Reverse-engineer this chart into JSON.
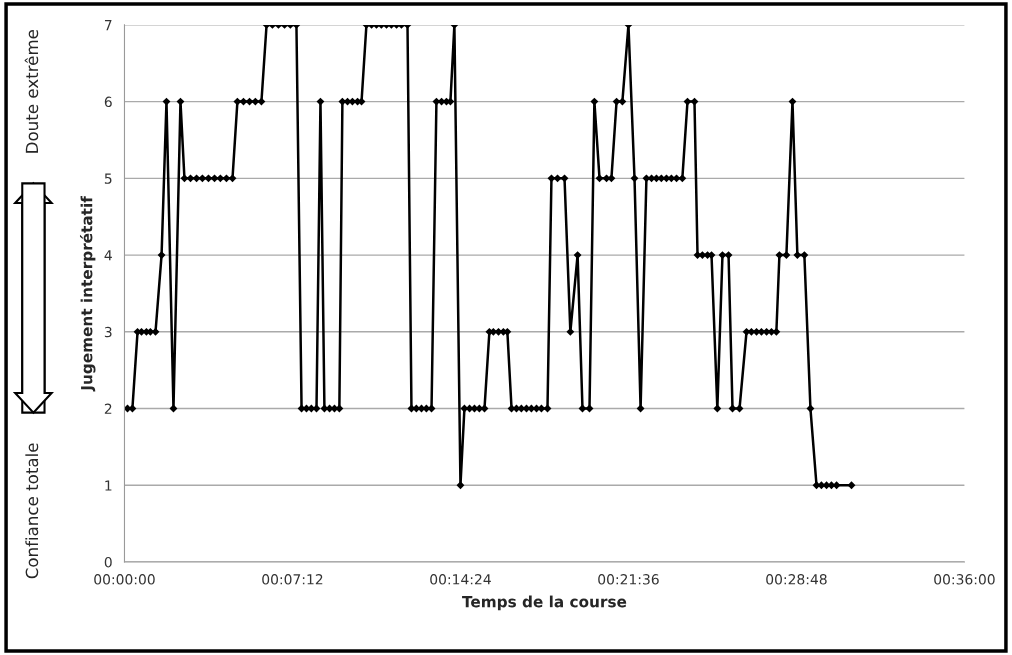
{
  "chart_data": {
    "type": "line",
    "xlabel": "Temps de la course",
    "ylabel": "Jugement interprétatif",
    "annotations": [
      "Doute extrême",
      "Confiance totale"
    ],
    "x": [
      0.13,
      0.34,
      0.56,
      0.73,
      0.94,
      1.11,
      1.33,
      1.59,
      1.8,
      2.1,
      2.4,
      2.57,
      2.83,
      3.09,
      3.34,
      3.6,
      3.86,
      4.11,
      4.37,
      4.63,
      4.84,
      5.1,
      5.36,
      5.61,
      5.87,
      6.09,
      6.34,
      6.6,
      6.86,
      7.11,
      7.37,
      7.59,
      7.8,
      8.01,
      8.23,
      8.4,
      8.57,
      8.79,
      9.0,
      9.21,
      9.34,
      9.56,
      9.77,
      9.99,
      10.16,
      10.37,
      10.59,
      10.8,
      11.01,
      11.23,
      11.44,
      11.66,
      11.87,
      12.13,
      12.3,
      12.51,
      12.73,
      12.94,
      13.16,
      13.37,
      13.59,
      13.8,
      13.97,
      14.14,
      14.4,
      14.57,
      14.79,
      15.0,
      15.21,
      15.43,
      15.64,
      15.81,
      16.03,
      16.24,
      16.41,
      16.59,
      16.8,
      17.01,
      17.23,
      17.44,
      17.66,
      17.87,
      18.13,
      18.3,
      18.56,
      18.86,
      19.11,
      19.42,
      19.63,
      19.93,
      20.14,
      20.36,
      20.66,
      20.87,
      21.09,
      21.34,
      21.6,
      21.86,
      22.12,
      22.37,
      22.59,
      22.8,
      23.01,
      23.23,
      23.44,
      23.66,
      23.91,
      24.13,
      24.43,
      24.56,
      24.77,
      24.99,
      25.16,
      25.41,
      25.63,
      25.89,
      26.06,
      26.36,
      26.66,
      26.87,
      27.09,
      27.3,
      27.52,
      27.73,
      27.94,
      28.07,
      28.37,
      28.63,
      28.84,
      29.14,
      29.4,
      29.66,
      29.87,
      30.09,
      30.3,
      30.52,
      31.16
    ],
    "series": [
      {
        "color": "#000000",
        "values": [
          2,
          2,
          3,
          3,
          3,
          3,
          3,
          4,
          6,
          2,
          6,
          5,
          5,
          5,
          5,
          5,
          5,
          5,
          5,
          5,
          6,
          6,
          6,
          6,
          6,
          7,
          7,
          7,
          7,
          7,
          7,
          2,
          2,
          2,
          2,
          6,
          2,
          2,
          2,
          2,
          6,
          6,
          6,
          6,
          6,
          7,
          7,
          7,
          7,
          7,
          7,
          7,
          7,
          7,
          2,
          2,
          2,
          2,
          2,
          6,
          6,
          6,
          6,
          7,
          1,
          2,
          2,
          2,
          2,
          2,
          3,
          3,
          3,
          3,
          3,
          2,
          2,
          2,
          2,
          2,
          2,
          2,
          2,
          5,
          5,
          5,
          3,
          4,
          2,
          2,
          6,
          5,
          5,
          5,
          6,
          6,
          7,
          5,
          2,
          5,
          5,
          5,
          5,
          5,
          5,
          5,
          5,
          6,
          6,
          4,
          4,
          4,
          4,
          2,
          4,
          4,
          2,
          2,
          3,
          3,
          3,
          3,
          3,
          3,
          3,
          4,
          4,
          6,
          4,
          4,
          2,
          1,
          1,
          1,
          1,
          1,
          1
        ]
      }
    ],
    "xlim": [
      0,
      36
    ],
    "xticks": [
      {
        "value": 0,
        "label": "00:00:00"
      },
      {
        "value": 7.2,
        "label": "00:07:12"
      },
      {
        "value": 14.4,
        "label": "00:14:24"
      },
      {
        "value": 21.6,
        "label": "00:21:36"
      },
      {
        "value": 28.8,
        "label": "00:28:48"
      },
      {
        "value": 36,
        "label": "00:36:00"
      }
    ],
    "ylim": [
      0,
      7
    ],
    "yticks": [
      0,
      1,
      2,
      3,
      4,
      5,
      6,
      7
    ],
    "grid": "y",
    "marker": "diamond",
    "line_style": "solid"
  }
}
